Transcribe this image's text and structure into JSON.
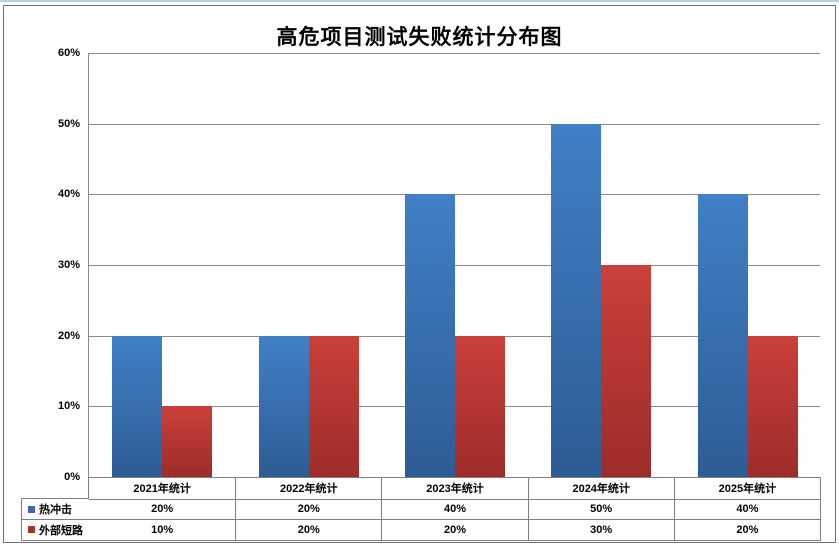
{
  "title": "高危项目测试失败统计分布图",
  "chart_data": {
    "type": "bar",
    "title": "高危项目测试失败统计分布图",
    "categories": [
      "2021年统计",
      "2022年统计",
      "2023年统计",
      "2024年统计",
      "2025年统计"
    ],
    "series": [
      {
        "name": "热冲击",
        "values": [
          20,
          20,
          40,
          50,
          40
        ],
        "color_top": "#4080c6",
        "color_bottom": "#2e5c95",
        "legend_color": "#3a6bb1"
      },
      {
        "name": "外部短路",
        "values": [
          10,
          20,
          20,
          30,
          20
        ],
        "color_top": "#cb403a",
        "color_bottom": "#9d2c29",
        "legend_color": "#ae2f2c"
      }
    ],
    "xlabel": "",
    "ylabel": "",
    "ylim": [
      0,
      60
    ],
    "ytick_step": 10,
    "ytick_labels": [
      "0%",
      "10%",
      "20%",
      "30%",
      "40%",
      "50%",
      "60%"
    ],
    "value_suffix": "%",
    "grid": true,
    "gridline_color": "#8a8a8a",
    "legend_position": "data-table-left",
    "data_table_shown": true,
    "table_rows": [
      {
        "label": "热冲击",
        "cells": [
          "20%",
          "20%",
          "40%",
          "50%",
          "40%"
        ]
      },
      {
        "label": "外部短路",
        "cells": [
          "10%",
          "20%",
          "20%",
          "30%",
          "20%"
        ]
      }
    ]
  },
  "colors": {
    "frame_border": "#6f6f6f",
    "table_border": "#7f7f7f",
    "top_strip": "#b5d2ea",
    "background": "#ffffff"
  }
}
